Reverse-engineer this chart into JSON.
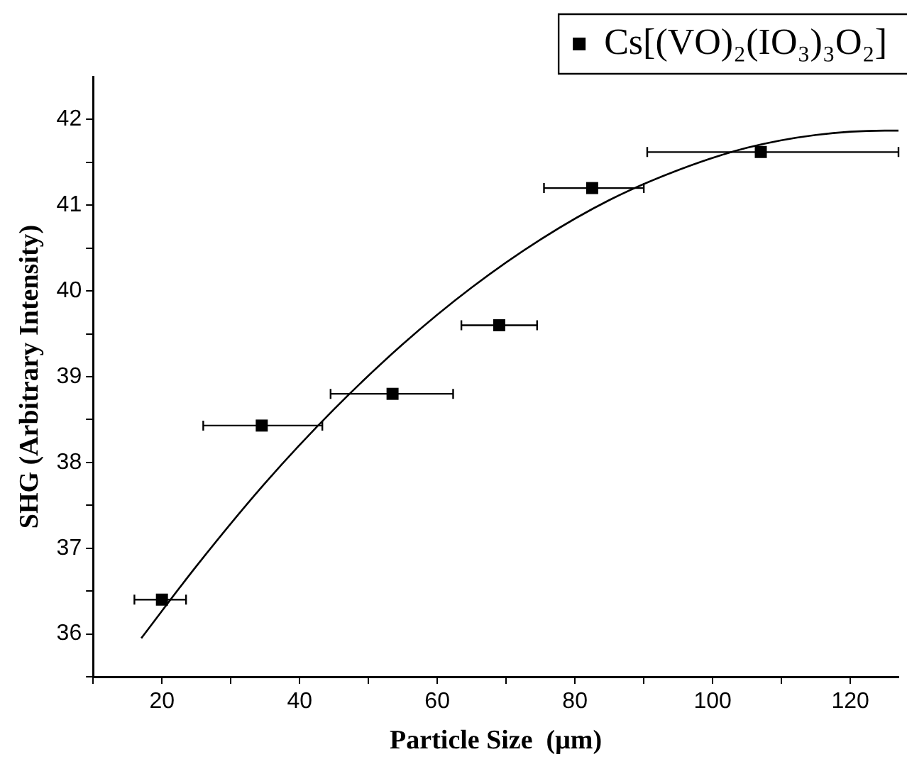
{
  "chart_data": {
    "type": "scatter",
    "xlabel": "Particle Size  (μm)",
    "ylabel": "SHG (Arbitrary Intensity)",
    "xlim": [
      10,
      127
    ],
    "ylim": [
      35.5,
      42.5
    ],
    "xticks": [
      {
        "value": 10,
        "label": null
      },
      20,
      {
        "value": 30,
        "label": null
      },
      40,
      {
        "value": 50,
        "label": null
      },
      60,
      {
        "value": 70,
        "label": null
      },
      80,
      {
        "value": 90,
        "label": null
      },
      100,
      {
        "value": 110,
        "label": null
      },
      120
    ],
    "yticks": [
      {
        "value": 35.5,
        "label": null
      },
      36,
      {
        "value": 36.5,
        "label": null
      },
      37,
      {
        "value": 37.5,
        "label": null
      },
      38,
      {
        "value": 38.5,
        "label": null
      },
      39,
      {
        "value": 39.5,
        "label": null
      },
      40,
      {
        "value": 40.5,
        "label": null
      },
      41,
      {
        "value": 41.5,
        "label": null
      },
      42
    ],
    "grid": false,
    "legend": "top right",
    "marker": "square",
    "series": [
      {
        "name": "Cs[(VO)₂(IO₃)₃O₂]",
        "color": "#000000",
        "x": [
          20,
          34.5,
          53.5,
          69,
          82.5,
          107
        ],
        "values": [
          36.4,
          38.43,
          38.8,
          39.6,
          41.2,
          41.62
        ],
        "xerrors": [
          [
            16,
            23.5
          ],
          [
            26,
            43.3
          ],
          [
            44.5,
            62.3
          ],
          [
            63.5,
            74.5
          ],
          [
            75.5,
            90
          ],
          [
            90.5,
            127
          ]
        ]
      },
      {
        "type": "line",
        "color": "#000000",
        "marker": "none",
        "x": [
          17,
          25,
          35,
          45,
          55,
          65,
          75,
          85,
          95,
          105,
          115,
          125,
          127
        ],
        "values": [
          35.95,
          36.79,
          37.76,
          38.62,
          39.38,
          40.04,
          40.6,
          41.06,
          41.41,
          41.67,
          41.82,
          41.87,
          41.87
        ]
      }
    ]
  }
}
